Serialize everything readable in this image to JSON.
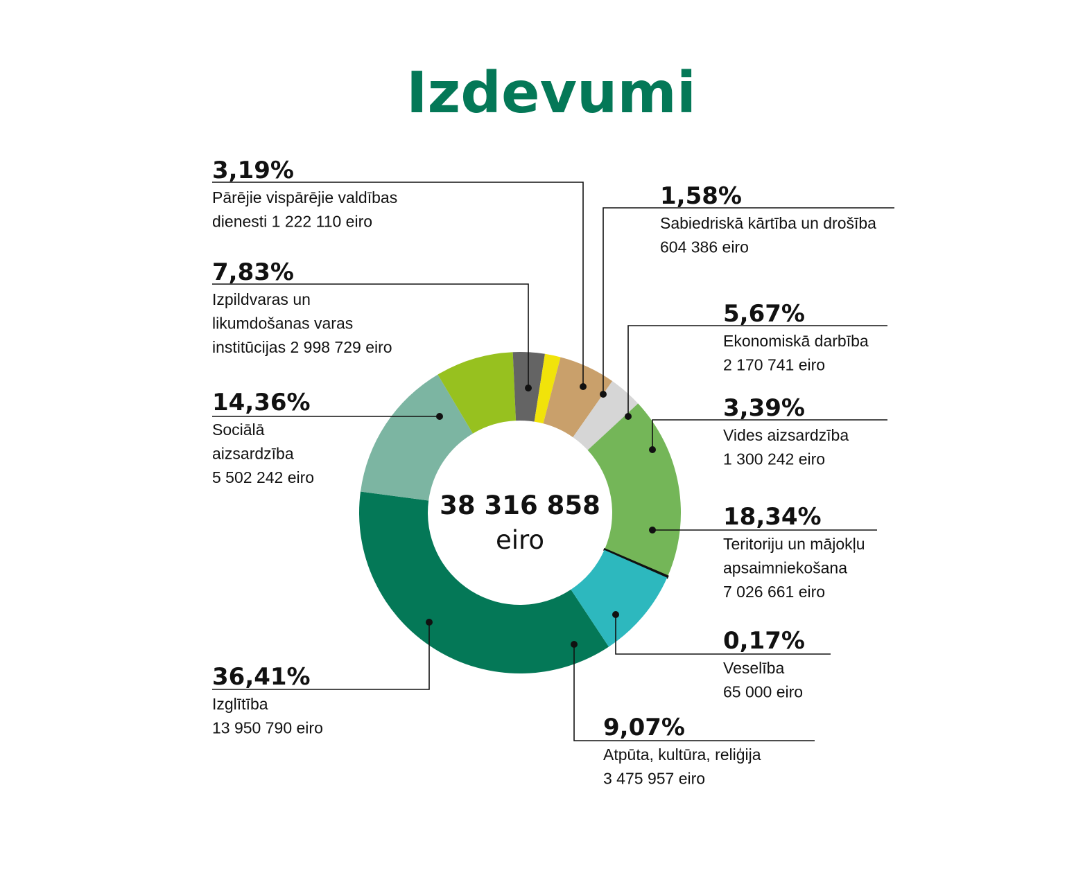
{
  "colors": {
    "title": "#047857",
    "text": "#111111",
    "leader": "#111111"
  },
  "chart_data": {
    "type": "pie",
    "title": "Izdevumi",
    "total": {
      "value": "38 316 858",
      "unit": "eiro"
    },
    "slices": [
      {
        "pct": 36.41,
        "pct_label": "36,41%",
        "lines": [
          "Izglītība",
          "13 950 790 eiro"
        ],
        "color": "#047857"
      },
      {
        "pct": 14.36,
        "pct_label": "14,36%",
        "lines": [
          "Sociālā",
          "aizsardzība",
          "5 502 242 eiro"
        ],
        "color": "#7cb5a2"
      },
      {
        "pct": 7.83,
        "pct_label": "7,83%",
        "lines": [
          "Izpildvaras un",
          "likumdošanas varas",
          "institūcijas 2 998 729 eiro"
        ],
        "color": "#97c11f"
      },
      {
        "pct": 3.19,
        "pct_label": "3,19%",
        "lines": [
          "Pārējie vispārējie valdības",
          "dienesti 1 222 110 eiro"
        ],
        "color": "#646464"
      },
      {
        "pct": 1.58,
        "pct_label": "1,58%",
        "lines": [
          "Sabiedriskā kārtība un drošība",
          "604 386 eiro"
        ],
        "color": "#f1e30a"
      },
      {
        "pct": 5.67,
        "pct_label": "5,67%",
        "lines": [
          "Ekonomiskā darbība",
          "2 170 741 eiro"
        ],
        "color": "#c9a06b"
      },
      {
        "pct": 3.39,
        "pct_label": "3,39%",
        "lines": [
          "Vides aizsardzība",
          "1 300 242 eiro"
        ],
        "color": "#d6d6d6"
      },
      {
        "pct": 18.34,
        "pct_label": "18,34%",
        "lines": [
          "Teritoriju un mājokļu",
          "apsaimniekošana",
          "7 026 661 eiro"
        ],
        "color": "#74b658"
      },
      {
        "pct": 0.17,
        "pct_label": "0,17%",
        "lines": [
          "Veselība",
          "65 000 eiro"
        ],
        "color": "#111111"
      },
      {
        "pct": 9.07,
        "pct_label": "9,07%",
        "lines": [
          "Atpūta, kultūra, reliģija",
          "3 475 957 eiro"
        ],
        "color": "#2db8be"
      }
    ]
  }
}
